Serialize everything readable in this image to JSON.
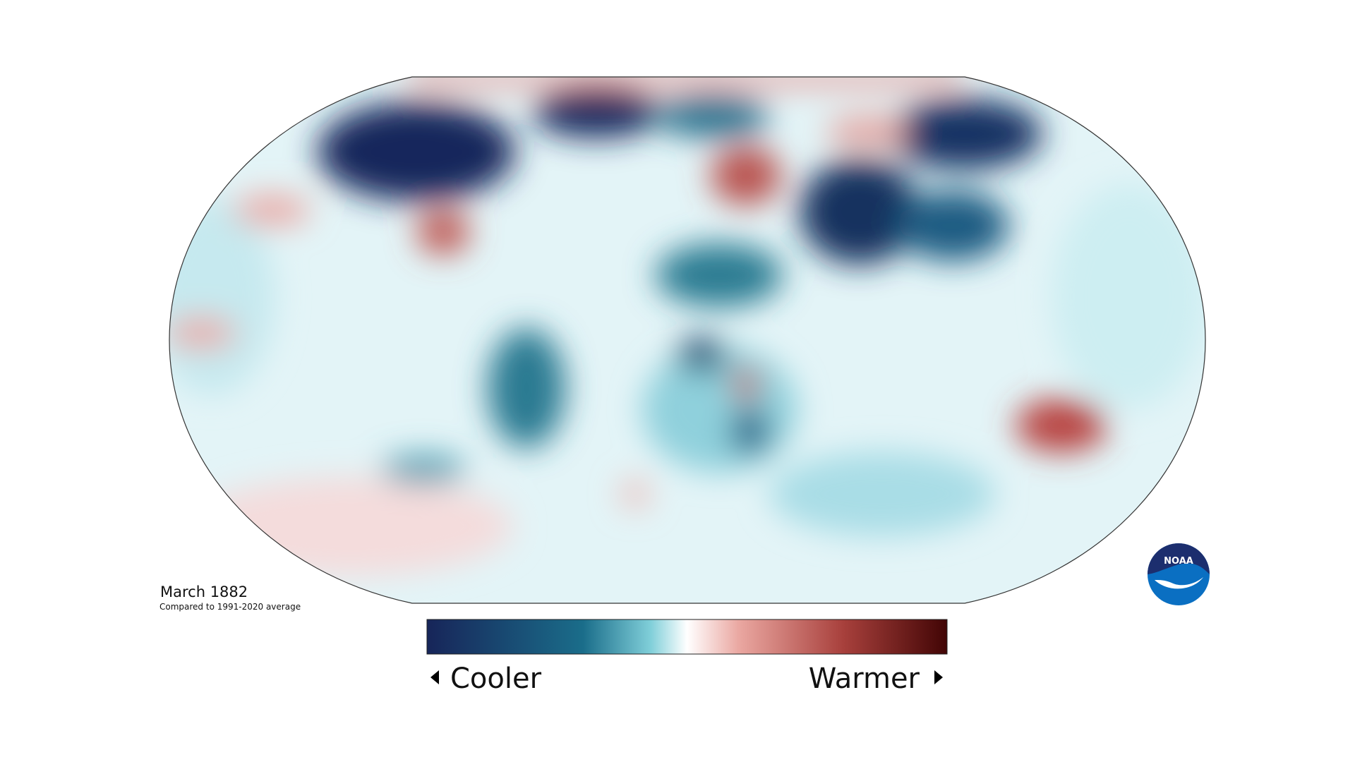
{
  "map": {
    "date_label": "March 1882",
    "baseline_note": "Compared to 1991-2020 average"
  },
  "legend": {
    "low_label": "Cooler",
    "high_label": "Warmer"
  },
  "logo": {
    "text": "NOAA"
  }
}
